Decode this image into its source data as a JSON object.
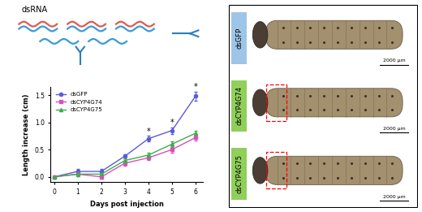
{
  "schematic": {
    "label": "dsRNA"
  },
  "chart_data": {
    "type": "line",
    "x_label": "Days post injection",
    "y_label": "Length increase (cm)",
    "x": [
      0,
      1,
      2,
      3,
      4,
      5,
      6
    ],
    "xlim": [
      -0.15,
      6.3
    ],
    "xticks": [
      0,
      1,
      2,
      3,
      4,
      5,
      6
    ],
    "ylim": [
      -0.1,
      1.65
    ],
    "yticks": [
      {
        "value": 0,
        "label": "0.0"
      },
      {
        "value": 0.5,
        "label": "0.5"
      },
      {
        "value": 1,
        "label": "1.0"
      },
      {
        "value": 1.5,
        "label": "1.5"
      }
    ],
    "legend": "upper left",
    "series": [
      {
        "name": "dsGFP",
        "color": "#5b5bd6",
        "marker": "circle",
        "values": [
          0,
          0.1,
          0.1,
          0.38,
          0.7,
          0.85,
          1.48
        ],
        "error": [
          0,
          0.05,
          0.05,
          0.04,
          0.05,
          0.06,
          0.08
        ]
      },
      {
        "name": "dsCYP4G74",
        "color": "#d94fc1",
        "marker": "square",
        "values": [
          0,
          0.05,
          0.0,
          0.25,
          0.35,
          0.5,
          0.72
        ],
        "error": [
          0,
          0.04,
          0.04,
          0.04,
          0.04,
          0.06,
          0.05
        ]
      },
      {
        "name": "dsCYP4G75",
        "color": "#3fae49",
        "marker": "triangle",
        "values": [
          0,
          0.05,
          0.05,
          0.3,
          0.4,
          0.6,
          0.8
        ],
        "error": [
          0,
          0.04,
          0.04,
          0.04,
          0.04,
          0.05,
          0.05
        ]
      }
    ],
    "annotations": [
      {
        "x": 4,
        "text": "*"
      },
      {
        "x": 5,
        "text": "*"
      },
      {
        "x": 6,
        "text": "*"
      }
    ]
  },
  "photos": [
    {
      "label": "dsGFP",
      "label_color": "#9ec5e8",
      "scale_bar": "2000 μm",
      "highlight": false
    },
    {
      "label": "dsCYP4G74",
      "label_color": "#8fcf5a",
      "scale_bar": "2000 μm",
      "highlight": true
    },
    {
      "label": "dsCYP4G75",
      "label_color": "#8fcf5a",
      "scale_bar": "2000 μm",
      "highlight": true
    }
  ]
}
